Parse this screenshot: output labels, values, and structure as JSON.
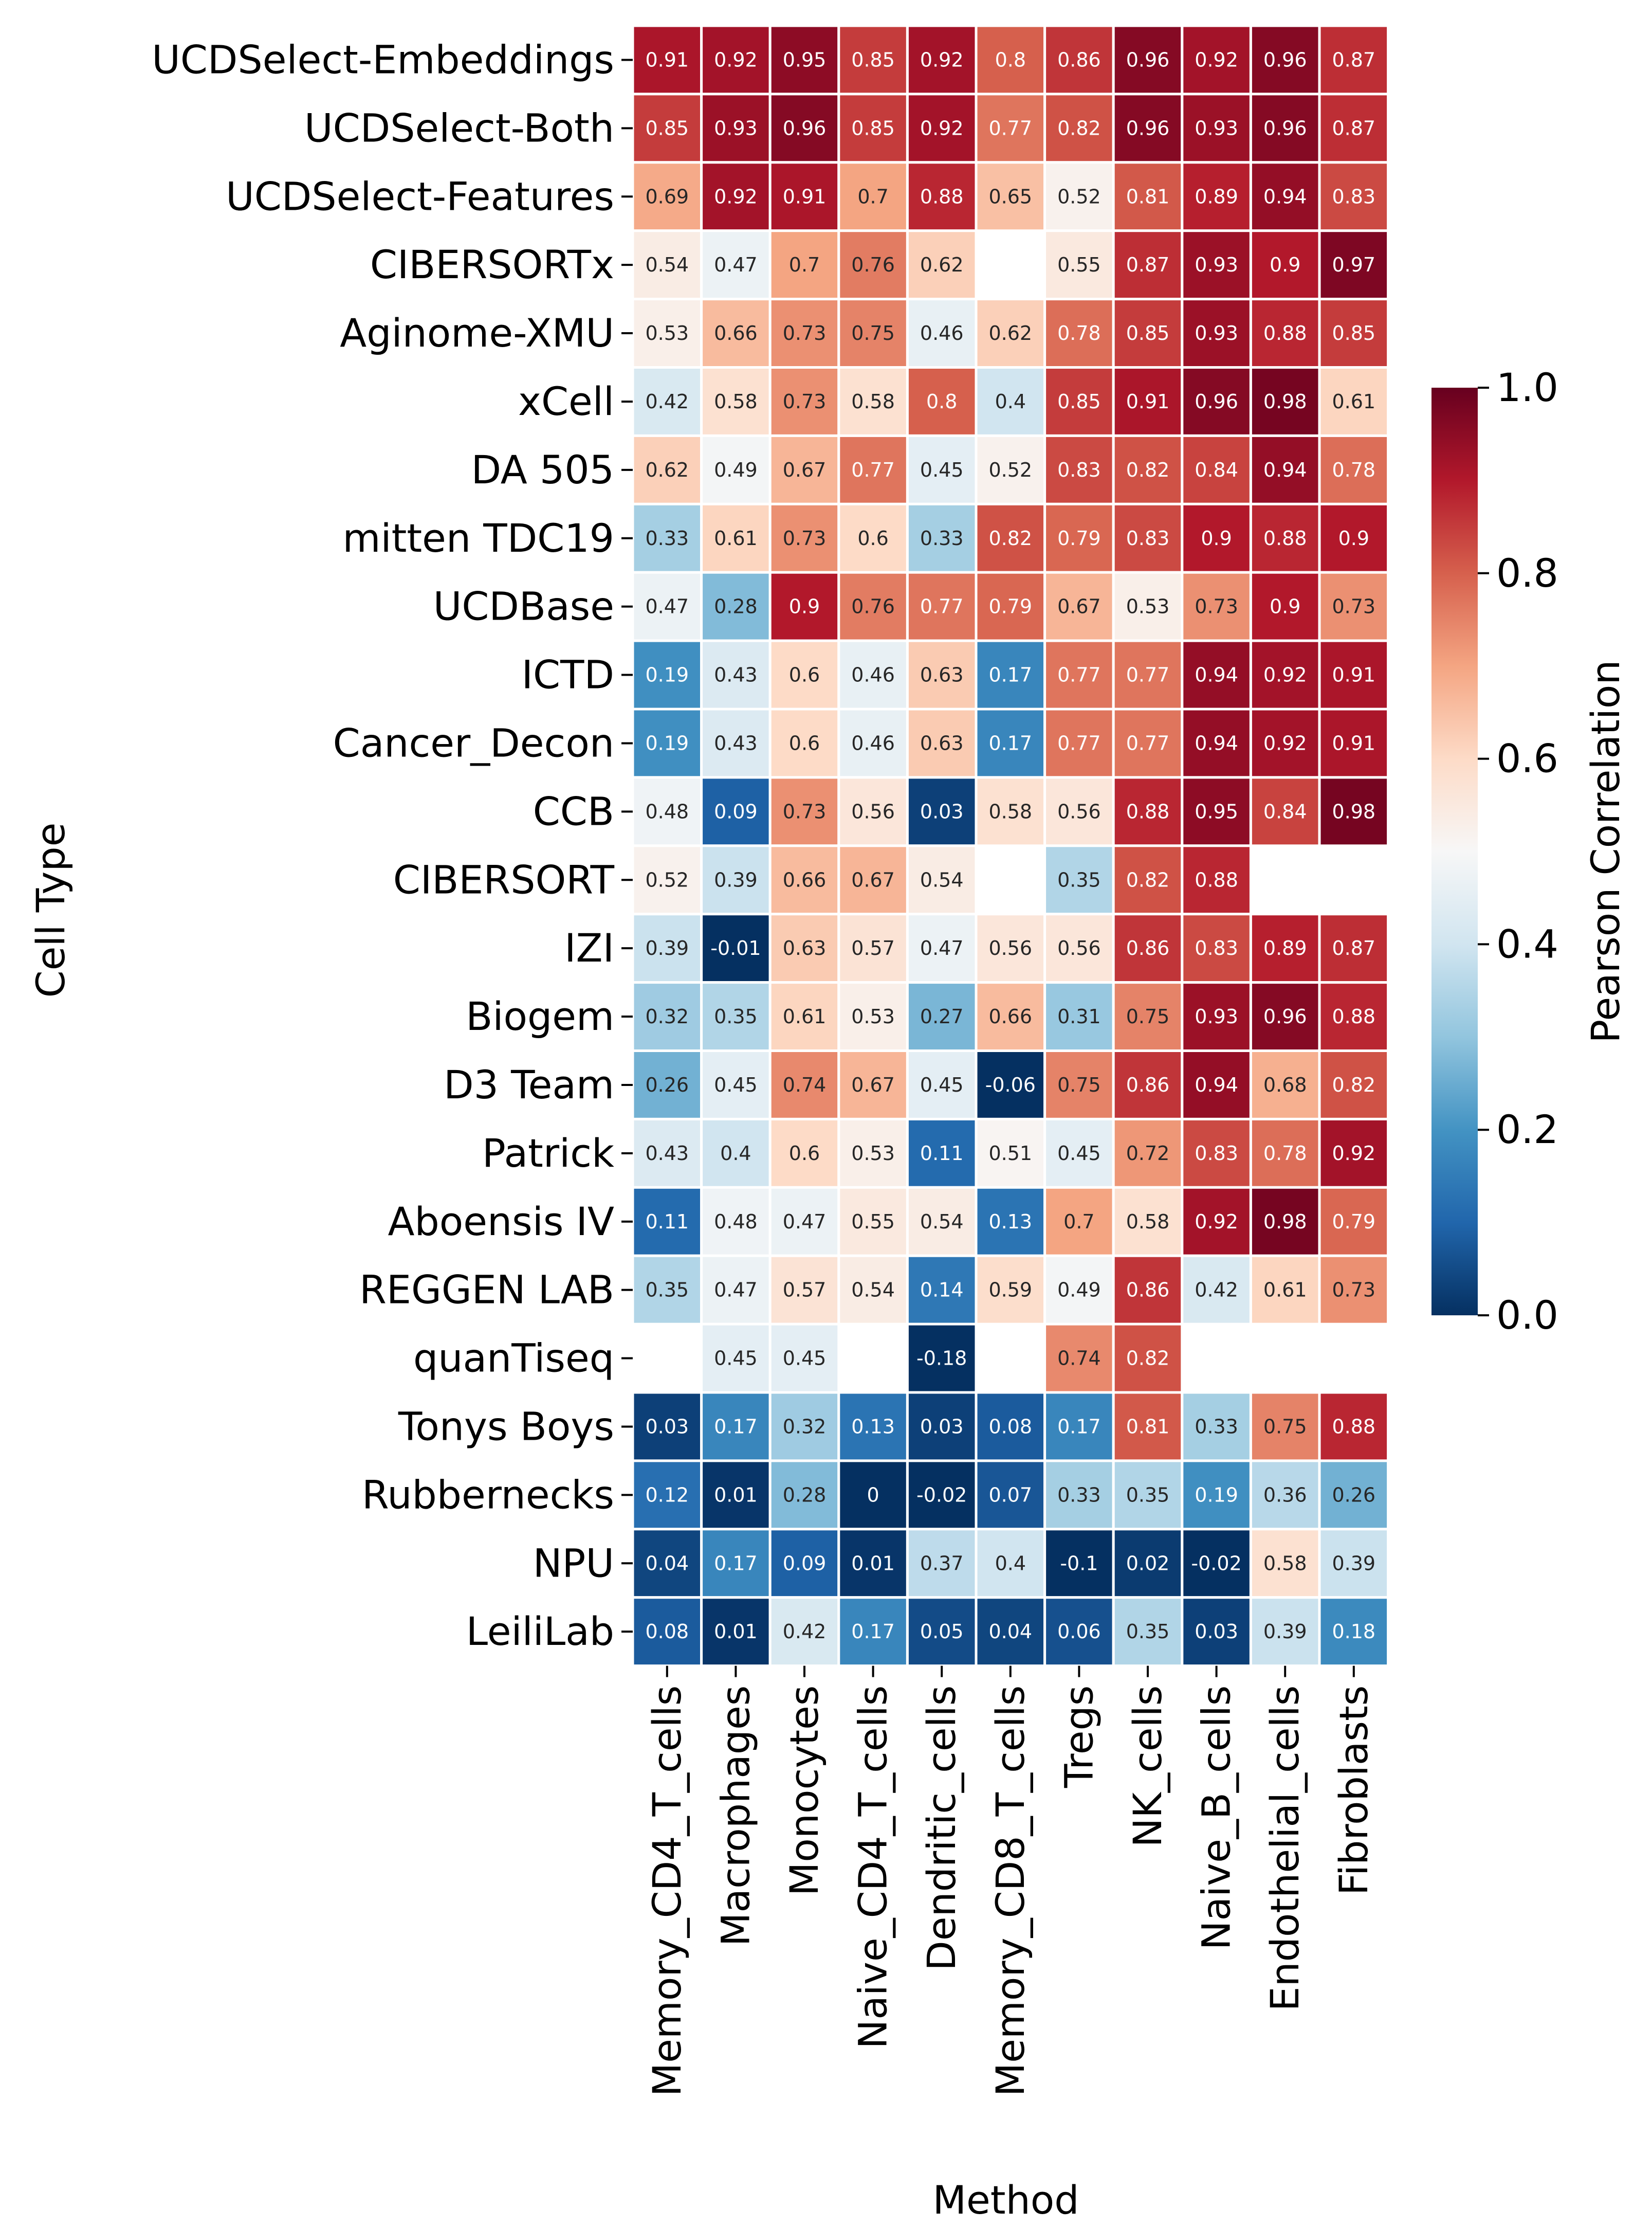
{
  "chart_data": {
    "type": "heatmap",
    "xlabel": "Method",
    "ylabel": "Cell Type",
    "colorbar_label": "Pearson Correlation",
    "colorbar_ticks": [
      "0.0",
      "0.2",
      "0.4",
      "0.6",
      "0.8",
      "1.0"
    ],
    "colorbar_range": [
      0,
      1
    ],
    "colormap": "RdBu_r",
    "x_categories": [
      "Memory_CD4_T_cells",
      "Macrophages",
      "Monocytes",
      "Naive_CD4_T_cells",
      "Dendritic_cells",
      "Memory_CD8_T_cells",
      "Tregs",
      "NK_cells",
      "Naive_B_cells",
      "Endothelial_cells",
      "Fibroblasts"
    ],
    "y_categories": [
      "UCDSelect-Embeddings",
      "UCDSelect-Both",
      "UCDSelect-Features",
      "CIBERSORTx",
      "Aginome-XMU",
      "xCell",
      "DA 505",
      "mitten TDC19",
      "UCDBase",
      "ICTD",
      "Cancer_Decon",
      "CCB",
      "CIBERSORT",
      "IZI",
      "Biogem",
      "D3 Team",
      "Patrick",
      "Aboensis IV",
      "REGGEN LAB",
      "quanTiseq",
      "Tonys Boys",
      "Rubbernecks",
      "NPU",
      "LeiliLab"
    ],
    "values": [
      [
        "0.91",
        "0.92",
        "0.95",
        "0.85",
        "0.92",
        "0.8",
        "0.86",
        "0.96",
        "0.92",
        "0.96",
        "0.87"
      ],
      [
        "0.85",
        "0.93",
        "0.96",
        "0.85",
        "0.92",
        "0.77",
        "0.82",
        "0.96",
        "0.93",
        "0.96",
        "0.87"
      ],
      [
        "0.69",
        "0.92",
        "0.91",
        "0.7",
        "0.88",
        "0.65",
        "0.52",
        "0.81",
        "0.89",
        "0.94",
        "0.83"
      ],
      [
        "0.54",
        "0.47",
        "0.7",
        "0.76",
        "0.62",
        null,
        "0.55",
        "0.87",
        "0.93",
        "0.9",
        "0.97"
      ],
      [
        "0.53",
        "0.66",
        "0.73",
        "0.75",
        "0.46",
        "0.62",
        "0.78",
        "0.85",
        "0.93",
        "0.88",
        "0.85"
      ],
      [
        "0.42",
        "0.58",
        "0.73",
        "0.58",
        "0.8",
        "0.4",
        "0.85",
        "0.91",
        "0.96",
        "0.98",
        "0.61"
      ],
      [
        "0.62",
        "0.49",
        "0.67",
        "0.77",
        "0.45",
        "0.52",
        "0.83",
        "0.82",
        "0.84",
        "0.94",
        "0.78"
      ],
      [
        "0.33",
        "0.61",
        "0.73",
        "0.6",
        "0.33",
        "0.82",
        "0.79",
        "0.83",
        "0.9",
        "0.88",
        "0.9"
      ],
      [
        "0.47",
        "0.28",
        "0.9",
        "0.76",
        "0.77",
        "0.79",
        "0.67",
        "0.53",
        "0.73",
        "0.9",
        "0.73"
      ],
      [
        "0.19",
        "0.43",
        "0.6",
        "0.46",
        "0.63",
        "0.17",
        "0.77",
        "0.77",
        "0.94",
        "0.92",
        "0.91"
      ],
      [
        "0.19",
        "0.43",
        "0.6",
        "0.46",
        "0.63",
        "0.17",
        "0.77",
        "0.77",
        "0.94",
        "0.92",
        "0.91"
      ],
      [
        "0.48",
        "0.09",
        "0.73",
        "0.56",
        "0.03",
        "0.58",
        "0.56",
        "0.88",
        "0.95",
        "0.84",
        "0.98"
      ],
      [
        "0.52",
        "0.39",
        "0.66",
        "0.67",
        "0.54",
        null,
        "0.35",
        "0.82",
        "0.88",
        null,
        null
      ],
      [
        "0.39",
        "-0.01",
        "0.63",
        "0.57",
        "0.47",
        "0.56",
        "0.56",
        "0.86",
        "0.83",
        "0.89",
        "0.87"
      ],
      [
        "0.32",
        "0.35",
        "0.61",
        "0.53",
        "0.27",
        "0.66",
        "0.31",
        "0.75",
        "0.93",
        "0.96",
        "0.88"
      ],
      [
        "0.26",
        "0.45",
        "0.74",
        "0.67",
        "0.45",
        "-0.06",
        "0.75",
        "0.86",
        "0.94",
        "0.68",
        "0.82"
      ],
      [
        "0.43",
        "0.4",
        "0.6",
        "0.53",
        "0.11",
        "0.51",
        "0.45",
        "0.72",
        "0.83",
        "0.78",
        "0.92"
      ],
      [
        "0.11",
        "0.48",
        "0.47",
        "0.55",
        "0.54",
        "0.13",
        "0.7",
        "0.58",
        "0.92",
        "0.98",
        "0.79"
      ],
      [
        "0.35",
        "0.47",
        "0.57",
        "0.54",
        "0.14",
        "0.59",
        "0.49",
        "0.86",
        "0.42",
        "0.61",
        "0.73"
      ],
      [
        null,
        "0.45",
        "0.45",
        null,
        "-0.18",
        null,
        "0.74",
        "0.82",
        null,
        null,
        null
      ],
      [
        "0.03",
        "0.17",
        "0.32",
        "0.13",
        "0.03",
        "0.08",
        "0.17",
        "0.81",
        "0.33",
        "0.75",
        "0.88"
      ],
      [
        "0.12",
        "0.01",
        "0.28",
        "0",
        "-0.02",
        "0.07",
        "0.33",
        "0.35",
        "0.19",
        "0.36",
        "0.26"
      ],
      [
        "0.04",
        "0.17",
        "0.09",
        "0.01",
        "0.37",
        "0.4",
        "-0.1",
        "0.02",
        "-0.02",
        "0.58",
        "0.39"
      ],
      [
        "0.08",
        "0.01",
        "0.42",
        "0.17",
        "0.05",
        "0.04",
        "0.06",
        "0.35",
        "0.03",
        "0.39",
        "0.18"
      ]
    ]
  }
}
